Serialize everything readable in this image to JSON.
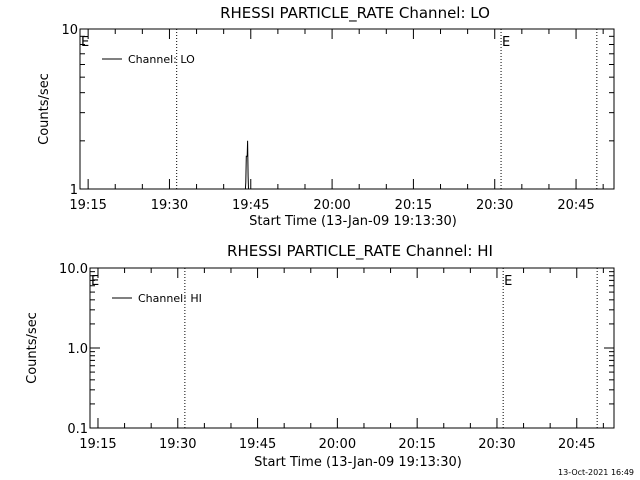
{
  "footer_timestamp": "13-Oct-2021 16:49",
  "chart_data": [
    {
      "type": "line",
      "title": "RHESSI PARTICLE_RATE Channel: LO",
      "xlabel": "Start Time (13-Jan-09 19:13:30)",
      "ylabel": "Counts/sec",
      "yscale": "log",
      "ylim": [
        1,
        10
      ],
      "yticks": [
        {
          "v": 1,
          "label": "1"
        },
        {
          "v": 10,
          "label": "10"
        }
      ],
      "xlim": [
        "19:13:30",
        "20:52:00"
      ],
      "xticks": [
        {
          "t": "19:15",
          "label": "19:15"
        },
        {
          "t": "19:30",
          "label": "19:30"
        },
        {
          "t": "19:45",
          "label": "19:45"
        },
        {
          "t": "20:00",
          "label": "20:00"
        },
        {
          "t": "20:15",
          "label": "20:15"
        },
        {
          "t": "20:30",
          "label": "20:30"
        },
        {
          "t": "20:45",
          "label": "20:45"
        }
      ],
      "legend": {
        "label": "Channel: LO",
        "position": "top-left"
      },
      "series": [
        {
          "name": "Channel: LO",
          "points": [
            {
              "x": "19:44:00",
              "y": 1
            },
            {
              "x": "19:44:05",
              "y": 1.1
            },
            {
              "x": "19:44:10",
              "y": 1.6
            },
            {
              "x": "19:44:20",
              "y": 1.6
            },
            {
              "x": "19:44:25",
              "y": 2
            },
            {
              "x": "19:44:30",
              "y": 1.2
            },
            {
              "x": "19:44:35",
              "y": 1
            }
          ]
        }
      ],
      "vlines": [
        "19:31:20",
        "20:31:10",
        "20:48:50"
      ],
      "markers": [
        {
          "x": "19:13:30",
          "text": "E"
        },
        {
          "x": "20:31:10",
          "text": "E"
        }
      ]
    },
    {
      "type": "line",
      "title": "RHESSI PARTICLE_RATE Channel: HI",
      "xlabel": "Start Time (13-Jan-09 19:13:30)",
      "ylabel": "Counts/sec",
      "yscale": "log",
      "ylim": [
        0.1,
        10
      ],
      "yticks": [
        {
          "v": 0.1,
          "label": "0.1"
        },
        {
          "v": 1,
          "label": "1.0"
        },
        {
          "v": 10,
          "label": "10.0"
        }
      ],
      "xlim": [
        "19:13:30",
        "20:52:00"
      ],
      "xticks": [
        {
          "t": "19:15",
          "label": "19:15"
        },
        {
          "t": "19:30",
          "label": "19:30"
        },
        {
          "t": "19:45",
          "label": "19:45"
        },
        {
          "t": "20:00",
          "label": "20:00"
        },
        {
          "t": "20:15",
          "label": "20:15"
        },
        {
          "t": "20:30",
          "label": "20:30"
        },
        {
          "t": "20:45",
          "label": "20:45"
        }
      ],
      "legend": {
        "label": "Channel: HI",
        "position": "top-left"
      },
      "series": [
        {
          "name": "Channel: HI",
          "points": []
        }
      ],
      "vlines": [
        "19:31:20",
        "20:31:10",
        "20:48:50"
      ],
      "markers": [
        {
          "x": "19:13:30",
          "text": "E"
        },
        {
          "x": "20:31:10",
          "text": "E"
        }
      ]
    }
  ]
}
